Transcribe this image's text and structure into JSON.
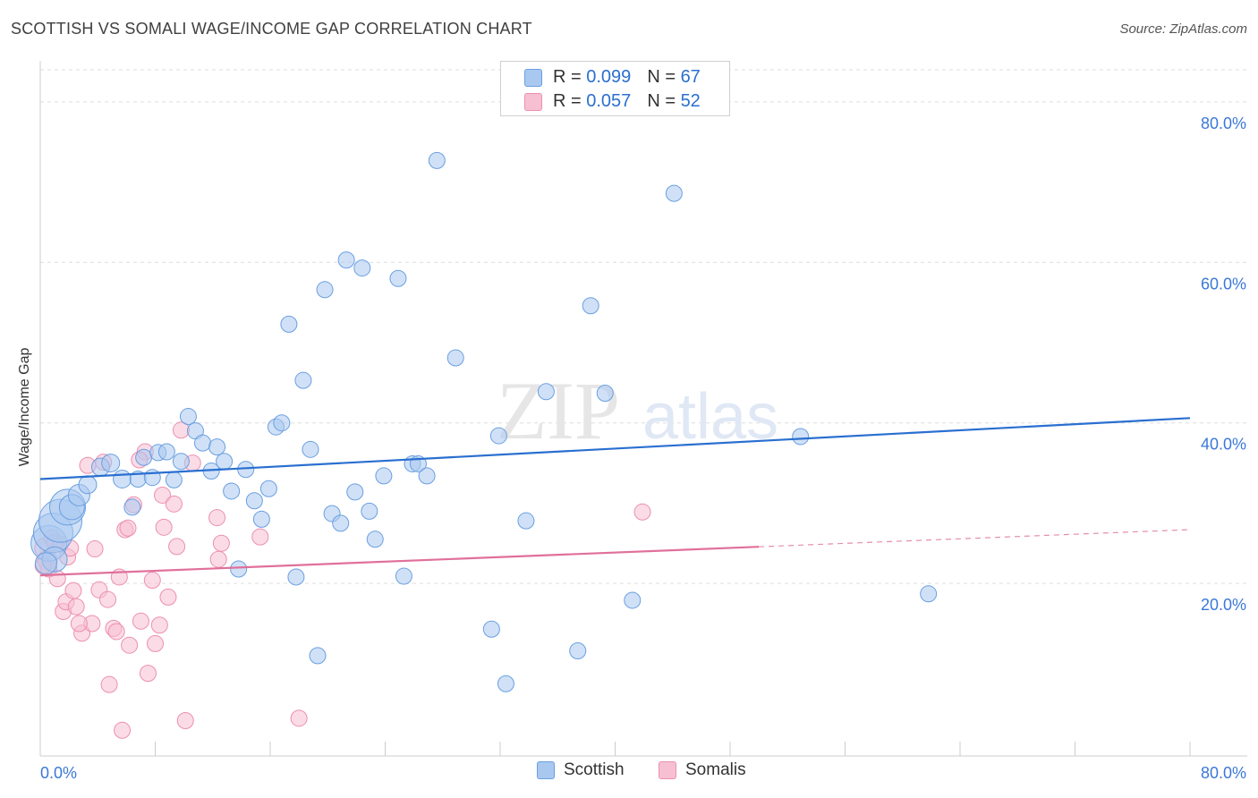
{
  "header": {
    "title": "SCOTTISH VS SOMALI WAGE/INCOME GAP CORRELATION CHART",
    "source": "Source: ZipAtlas.com"
  },
  "watermark": {
    "part1": "ZIP",
    "part2": "atlas"
  },
  "legend": {
    "rows": [
      {
        "r_label": "R =",
        "r_value": "0.099",
        "n_label": "N =",
        "n_value": "67"
      },
      {
        "r_label": "R =",
        "r_value": "0.057",
        "n_label": "N =",
        "n_value": "52"
      }
    ]
  },
  "bottom_legend": {
    "scottish": "Scottish",
    "somalis": "Somalis"
  },
  "colors": {
    "scottish_fill": "#a9c8f0",
    "scottish_stroke": "#6a9fe0",
    "scottish_line": "#2a6fd0",
    "somali_fill": "#f7c0d2",
    "somali_stroke": "#ec8fae",
    "somali_line": "#e0709a",
    "tick_text": "#3b78d8",
    "grid": "#dddddd"
  },
  "chart_data": {
    "type": "scatter",
    "title": "SCOTTISH VS SOMALI WAGE/INCOME GAP CORRELATION CHART",
    "xlabel": "",
    "ylabel": "Wage/Income Gap",
    "xlim": [
      0,
      80
    ],
    "ylim": [
      -1.5,
      84
    ],
    "x_tick_labels": [
      "0.0%",
      "80.0%"
    ],
    "y_ticks": [
      20,
      40,
      60,
      80
    ],
    "y_tick_labels": [
      "20.0%",
      "40.0%",
      "60.0%",
      "80.0%"
    ],
    "grid": true,
    "series": [
      {
        "name": "Scottish",
        "r": 0.099,
        "n": 67,
        "trend": {
          "x": [
            0,
            80
          ],
          "y": [
            33.0,
            40.6
          ],
          "dashed_from": null
        },
        "points": [
          [
            0.6,
            25.0,
            20
          ],
          [
            0.9,
            26.3,
            22
          ],
          [
            1.4,
            27.8,
            24
          ],
          [
            1.9,
            29.5,
            20
          ],
          [
            2.2,
            29.5,
            14
          ],
          [
            1.0,
            23.0,
            14
          ],
          [
            0.4,
            22.5,
            12
          ],
          [
            2.7,
            31.0,
            12
          ],
          [
            3.3,
            32.3,
            10
          ],
          [
            4.2,
            34.5,
            10
          ],
          [
            4.9,
            35.0,
            10
          ],
          [
            5.7,
            33.0,
            10
          ],
          [
            6.4,
            29.5,
            9
          ],
          [
            6.8,
            33.0,
            9
          ],
          [
            7.2,
            35.7,
            9
          ],
          [
            7.8,
            33.2,
            9
          ],
          [
            8.2,
            36.3,
            9
          ],
          [
            8.8,
            36.4,
            9
          ],
          [
            9.3,
            32.9,
            9
          ],
          [
            9.8,
            35.2,
            9
          ],
          [
            10.3,
            40.8,
            9
          ],
          [
            10.8,
            39.0,
            9
          ],
          [
            11.3,
            37.5,
            9
          ],
          [
            11.9,
            34.0,
            9
          ],
          [
            12.3,
            37.0,
            9
          ],
          [
            12.8,
            35.2,
            9
          ],
          [
            13.3,
            31.5,
            9
          ],
          [
            13.8,
            21.8,
            9
          ],
          [
            14.3,
            34.2,
            9
          ],
          [
            14.9,
            30.3,
            9
          ],
          [
            15.4,
            28.0,
            9
          ],
          [
            15.9,
            31.8,
            9
          ],
          [
            16.4,
            39.5,
            9
          ],
          [
            16.8,
            40.0,
            9
          ],
          [
            17.3,
            52.3,
            9
          ],
          [
            17.8,
            20.8,
            9
          ],
          [
            18.3,
            45.3,
            9
          ],
          [
            18.8,
            36.7,
            9
          ],
          [
            19.3,
            11.0,
            9
          ],
          [
            19.8,
            56.6,
            9
          ],
          [
            20.3,
            28.7,
            9
          ],
          [
            20.9,
            27.5,
            9
          ],
          [
            21.3,
            60.3,
            9
          ],
          [
            21.9,
            31.4,
            9
          ],
          [
            22.4,
            59.3,
            9
          ],
          [
            22.9,
            29.0,
            9
          ],
          [
            23.3,
            25.5,
            9
          ],
          [
            23.9,
            33.4,
            9
          ],
          [
            24.9,
            58.0,
            9
          ],
          [
            25.3,
            20.9,
            9
          ],
          [
            25.9,
            34.9,
            9
          ],
          [
            26.3,
            34.9,
            9
          ],
          [
            26.9,
            33.4,
            9
          ],
          [
            27.6,
            72.7,
            9
          ],
          [
            28.9,
            48.1,
            9
          ],
          [
            31.4,
            14.3,
            9
          ],
          [
            31.9,
            38.4,
            9
          ],
          [
            32.4,
            7.5,
            9
          ],
          [
            33.8,
            27.8,
            9
          ],
          [
            35.2,
            43.9,
            9
          ],
          [
            37.4,
            11.6,
            9
          ],
          [
            38.3,
            54.6,
            9
          ],
          [
            39.3,
            43.7,
            9
          ],
          [
            41.2,
            17.9,
            9
          ],
          [
            44.1,
            68.6,
            9
          ],
          [
            52.9,
            38.3,
            9
          ],
          [
            61.8,
            18.7,
            9
          ]
        ]
      },
      {
        "name": "Somalis",
        "r": 0.057,
        "n": 52,
        "trend": {
          "x": [
            0,
            80
          ],
          "y": [
            21.0,
            26.7
          ],
          "dashed_from": 50
        },
        "points": [
          [
            0.3,
            24.4,
            11
          ],
          [
            0.5,
            22.9,
            11
          ],
          [
            0.6,
            21.8,
            9
          ],
          [
            0.8,
            25.7,
            9
          ],
          [
            1.0,
            25.1,
            9
          ],
          [
            1.2,
            20.6,
            9
          ],
          [
            1.4,
            24.9,
            9
          ],
          [
            1.6,
            16.5,
            9
          ],
          [
            1.8,
            17.7,
            9
          ],
          [
            1.9,
            23.3,
            9
          ],
          [
            2.1,
            24.4,
            9
          ],
          [
            2.3,
            19.1,
            9
          ],
          [
            2.5,
            17.1,
            9
          ],
          [
            2.9,
            13.8,
            9
          ],
          [
            3.3,
            34.7,
            9
          ],
          [
            3.6,
            15.0,
            9
          ],
          [
            3.8,
            24.3,
            9
          ],
          [
            4.1,
            19.2,
            9
          ],
          [
            4.4,
            35.1,
            9
          ],
          [
            4.7,
            18.0,
            9
          ],
          [
            4.8,
            7.4,
            9
          ],
          [
            5.1,
            14.4,
            9
          ],
          [
            5.3,
            14.0,
            9
          ],
          [
            5.5,
            20.8,
            9
          ],
          [
            5.7,
            1.7,
            9
          ],
          [
            5.9,
            26.7,
            9
          ],
          [
            6.1,
            26.9,
            9
          ],
          [
            6.2,
            12.3,
            9
          ],
          [
            6.5,
            29.8,
            9
          ],
          [
            7.0,
            15.3,
            9
          ],
          [
            7.3,
            36.4,
            9
          ],
          [
            7.5,
            8.8,
            9
          ],
          [
            7.8,
            20.4,
            9
          ],
          [
            8.0,
            12.5,
            9
          ],
          [
            8.3,
            14.8,
            9
          ],
          [
            8.5,
            31.0,
            9
          ],
          [
            8.6,
            27.0,
            9
          ],
          [
            8.9,
            18.3,
            9
          ],
          [
            9.3,
            29.9,
            9
          ],
          [
            9.5,
            24.6,
            9
          ],
          [
            9.8,
            39.1,
            9
          ],
          [
            10.1,
            2.9,
            9
          ],
          [
            10.6,
            35.0,
            9
          ],
          [
            12.3,
            28.2,
            9
          ],
          [
            12.4,
            23.0,
            9
          ],
          [
            12.6,
            25.0,
            9
          ],
          [
            15.3,
            25.8,
            9
          ],
          [
            18.0,
            3.2,
            9
          ],
          [
            41.9,
            28.9,
            9
          ],
          [
            0.2,
            22.2,
            9
          ],
          [
            2.7,
            15.0,
            9
          ],
          [
            6.9,
            35.4,
            9
          ]
        ]
      }
    ]
  }
}
